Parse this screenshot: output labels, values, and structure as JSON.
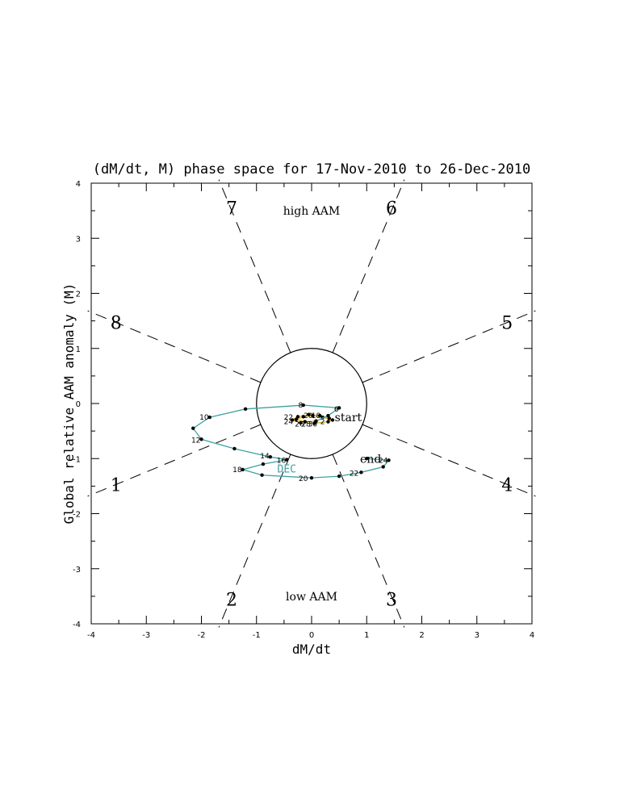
{
  "chart_data": {
    "type": "line",
    "title": "(dM/dt, M) phase space for 17-Nov-2010 to 26-Dec-2010",
    "xlabel": "dM/dt",
    "ylabel": "Global relative AAM anomaly (M)",
    "xlim": [
      -4,
      4
    ],
    "ylim": [
      -4,
      4
    ],
    "xticks": [
      "-4",
      "-3",
      "-2",
      "-1",
      "0",
      "1",
      "2",
      "3",
      "4"
    ],
    "yticks": [
      "-4",
      "-3",
      "-2",
      "-1",
      "0",
      "1",
      "2",
      "3",
      "4"
    ],
    "grid": false,
    "unit_circle_radius": 1,
    "phases": [
      {
        "label": "1",
        "x": -3.55,
        "y": -1.47
      },
      {
        "label": "2",
        "x": -1.45,
        "y": -3.55
      },
      {
        "label": "3",
        "x": 1.45,
        "y": -3.55
      },
      {
        "label": "4",
        "x": 3.55,
        "y": -1.47
      },
      {
        "label": "5",
        "x": 3.55,
        "y": 1.47
      },
      {
        "label": "6",
        "x": 1.45,
        "y": 3.55
      },
      {
        "label": "7",
        "x": -1.45,
        "y": 3.55
      },
      {
        "label": "8",
        "x": -3.55,
        "y": 1.47
      }
    ],
    "region_labels": [
      {
        "text": "high AAM",
        "x": 0,
        "y": 3.5
      },
      {
        "text": "low AAM",
        "x": 0,
        "y": -3.5
      }
    ],
    "annotations": [
      {
        "text": "start",
        "x": 0.42,
        "y": -0.25
      },
      {
        "text": "end",
        "x": 0.88,
        "y": -1.0
      }
    ],
    "series": [
      {
        "color": "#dab42c",
        "points": [
          {
            "x": 0.32,
            "y": -0.27
          },
          {
            "x": 0.15,
            "y": -0.22
          },
          {
            "x": -0.05,
            "y": -0.2
          },
          {
            "x": -0.25,
            "y": -0.24
          },
          {
            "x": -0.35,
            "y": -0.3
          },
          {
            "x": -0.2,
            "y": -0.35
          },
          {
            "x": 0.05,
            "y": -0.36
          },
          {
            "x": 0.3,
            "y": -0.33
          },
          {
            "x": 0.38,
            "y": -0.3
          },
          {
            "x": 0.2,
            "y": -0.25
          },
          {
            "x": 0.02,
            "y": -0.22
          },
          {
            "x": -0.15,
            "y": -0.24
          },
          {
            "x": -0.28,
            "y": -0.29
          },
          {
            "x": -0.12,
            "y": -0.33
          },
          {
            "x": 0.08,
            "y": -0.32
          }
        ]
      },
      {
        "color": "#3fa0a0",
        "points": [
          {
            "x": 0.08,
            "y": -0.32
          },
          {
            "x": 0.3,
            "y": -0.22
          },
          {
            "x": 0.5,
            "y": -0.08
          },
          {
            "x": -0.15,
            "y": -0.03
          },
          {
            "x": -1.2,
            "y": -0.1
          },
          {
            "x": -1.85,
            "y": -0.25
          },
          {
            "x": -2.15,
            "y": -0.45
          },
          {
            "x": -2.0,
            "y": -0.65
          },
          {
            "x": -1.4,
            "y": -0.82
          },
          {
            "x": -0.75,
            "y": -0.97
          },
          {
            "x": -0.45,
            "y": -1.02
          },
          {
            "x": -0.88,
            "y": -1.1
          },
          {
            "x": -1.25,
            "y": -1.2
          },
          {
            "x": -0.9,
            "y": -1.3
          },
          {
            "x": 0.0,
            "y": -1.35
          },
          {
            "x": 0.5,
            "y": -1.32
          },
          {
            "x": 0.9,
            "y": -1.25
          },
          {
            "x": 1.3,
            "y": -1.15
          },
          {
            "x": 1.4,
            "y": -1.03
          },
          {
            "x": 1.0,
            "y": -1.0
          }
        ]
      }
    ],
    "point_labels": [
      {
        "text": "8",
        "x": -0.2,
        "y": -0.03
      },
      {
        "text": "6",
        "x": 0.45,
        "y": -0.1
      },
      {
        "text": "10",
        "x": -1.95,
        "y": -0.25
      },
      {
        "text": "12",
        "x": -2.1,
        "y": -0.67
      },
      {
        "text": "14",
        "x": -0.85,
        "y": -0.95
      },
      {
        "text": "16",
        "x": -0.55,
        "y": -1.03
      },
      {
        "text": "18",
        "x": -1.35,
        "y": -1.2
      },
      {
        "text": "20",
        "x": -0.15,
        "y": -1.36
      },
      {
        "text": "22",
        "x": 0.77,
        "y": -1.27
      },
      {
        "text": "24",
        "x": 1.3,
        "y": -1.03
      },
      {
        "text": "20",
        "x": -0.06,
        "y": -0.22
      },
      {
        "text": "18",
        "x": 0.08,
        "y": -0.22
      },
      {
        "text": "22",
        "x": -0.42,
        "y": -0.25
      },
      {
        "text": "24",
        "x": -0.42,
        "y": -0.33
      },
      {
        "text": "26",
        "x": -0.22,
        "y": -0.37
      },
      {
        "text": "28",
        "x": -0.1,
        "y": -0.37
      },
      {
        "text": "30",
        "x": 0.02,
        "y": -0.37
      },
      {
        "text": "2",
        "x": 0.2,
        "y": -0.33
      }
    ],
    "month_labels": [
      {
        "text": "DEC",
        "x": -0.45,
        "y": -1.18,
        "color": "#3fa0a0"
      }
    ]
  }
}
